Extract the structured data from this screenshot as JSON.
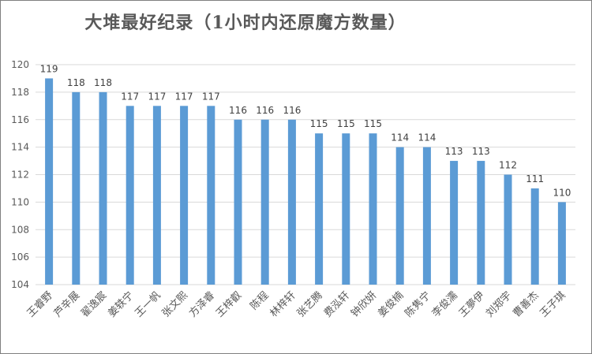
{
  "chart_data": {
    "type": "bar",
    "title": "大堆最好纪录（1小时内还原魔方数量）",
    "xlabel": "",
    "ylabel": "",
    "categories": [
      "王睿野",
      "芦辛展",
      "翟逸宸",
      "姜轶宁",
      "王一帆",
      "张文熙",
      "方泽睿",
      "王梓叡",
      "陈程",
      "林梓轩",
      "张艺腾",
      "费泓轩",
      "钟欣妍",
      "姜俊楠",
      "陈隽宁",
      "李俊濡",
      "王夢伊",
      "刘郑宇",
      "曹善杰",
      "王子琪"
    ],
    "values": [
      119,
      118,
      118,
      117,
      117,
      117,
      117,
      116,
      116,
      116,
      115,
      115,
      115,
      114,
      114,
      113,
      113,
      112,
      111,
      110
    ],
    "ylim": [
      104,
      120
    ],
    "yticks": [
      104,
      106,
      108,
      110,
      112,
      114,
      116,
      118,
      120
    ],
    "grid": true,
    "legend": "none",
    "bar_color": "#5b9bd5",
    "grid_color": "#d9d9d9"
  }
}
